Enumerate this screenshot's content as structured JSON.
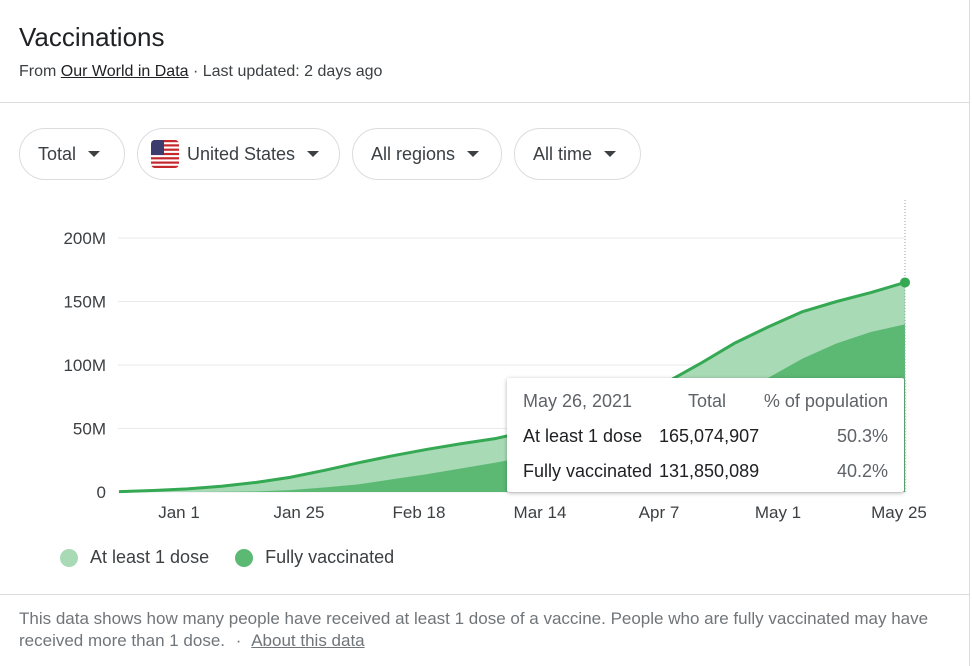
{
  "header": {
    "title": "Vaccinations",
    "from_prefix": "From",
    "source_link": "Our World in Data",
    "updated": "· Last updated: 2 days ago"
  },
  "filters": {
    "metric": "Total",
    "country": "United States",
    "region": "All regions",
    "time": "All time"
  },
  "colors": {
    "at_least_one": "#a8dab5",
    "fully": "#5bb974",
    "line": "#34a853"
  },
  "tooltip": {
    "date": "May 26, 2021",
    "col_total": "Total",
    "col_pct": "% of population",
    "rows": [
      {
        "label": "At least 1 dose",
        "total": "165,074,907",
        "pct": "50.3%"
      },
      {
        "label": "Fully vaccinated",
        "total": "131,850,089",
        "pct": "40.2%"
      }
    ]
  },
  "legend": {
    "at_least_one": "At least 1 dose",
    "fully": "Fully vaccinated"
  },
  "footer": {
    "text": "This data shows how many people have received at least 1 dose of a vaccine. People who are fully vaccinated may have received more than 1 dose.",
    "separator": "·",
    "link": "About this data"
  },
  "chart_data": {
    "type": "area",
    "y_ticks": [
      "0",
      "50M",
      "100M",
      "150M",
      "200M"
    ],
    "y_tick_values": [
      0,
      50,
      100,
      150,
      200
    ],
    "x_ticks": [
      "Jan 1",
      "Jan 25",
      "Feb 18",
      "Mar 14",
      "Apr 7",
      "May 1",
      "May 25"
    ],
    "ylim": [
      0,
      200
    ],
    "y_unit": "M",
    "x": [
      "Dec 14",
      "Dec 21",
      "Dec 28",
      "Jan 4",
      "Jan 11",
      "Jan 18",
      "Jan 25",
      "Feb 1",
      "Feb 8",
      "Feb 15",
      "Feb 22",
      "Mar 1",
      "Mar 8",
      "Mar 15",
      "Mar 22",
      "Mar 29",
      "Apr 5",
      "Apr 12",
      "Apr 19",
      "Apr 26",
      "May 3",
      "May 10",
      "May 17",
      "May 26"
    ],
    "series": [
      {
        "name": "At least 1 dose",
        "values": [
          0.3,
          1.2,
          2.5,
          4.5,
          7.5,
          11.5,
          17,
          23,
          28.5,
          33.5,
          38,
          42,
          48,
          55,
          64,
          74,
          86,
          101,
          117,
          130,
          142,
          150,
          157,
          165
        ]
      },
      {
        "name": "Fully vaccinated",
        "values": [
          0,
          0,
          0,
          0.2,
          0.5,
          1.5,
          3.5,
          6,
          10,
          14,
          18.5,
          23,
          28,
          33,
          40,
          48,
          57,
          65,
          75,
          90,
          105,
          117,
          126,
          132
        ]
      }
    ]
  }
}
